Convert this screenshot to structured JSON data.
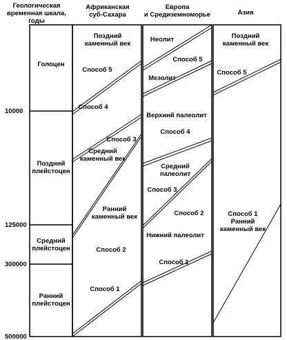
{
  "headers": {
    "timescale": [
      "Геологическая",
      "временная шкала,",
      "годы"
    ],
    "africa": [
      "Африканская",
      "суб-Сахара"
    ],
    "europe": [
      "Европа",
      "и Средиземноморье"
    ],
    "asia": [
      "Азия"
    ]
  },
  "epochs": [
    {
      "lines": [
        "Голоцен"
      ]
    },
    {
      "lines": [
        "Поздний",
        "плейстоцен"
      ]
    },
    {
      "lines": [
        "Средний",
        "плейстоцен"
      ]
    },
    {
      "lines": [
        "Ранний",
        "плейстоцен"
      ]
    }
  ],
  "years": [
    "10000",
    "125000",
    "300000",
    "500000"
  ],
  "africa": {
    "labels": [
      [
        "Поздний",
        "каменный век"
      ],
      [
        "Способ 5"
      ],
      [
        "Способ 4"
      ],
      [
        "Способ 3"
      ],
      [
        "Средний",
        "каменный век"
      ],
      [
        "Ранний",
        "каменный век"
      ],
      [
        "Способ 2"
      ],
      [
        "Способ 1"
      ]
    ]
  },
  "europe": {
    "labels": [
      [
        "Неолит"
      ],
      [
        "Способ 5"
      ],
      [
        "Мезолит"
      ],
      [
        "Верхний палеолит"
      ],
      [
        "Способ 4"
      ],
      [
        "Средний",
        "палеолит"
      ],
      [
        "Способ 3"
      ],
      [
        "Способ 2"
      ],
      [
        "Нижний палеолит"
      ],
      [
        "Способ 1"
      ]
    ]
  },
  "asia": {
    "labels": [
      [
        "Поздний",
        "каменный век"
      ],
      [
        "Способ 5"
      ],
      [
        "Способ 1",
        "Ранний",
        "каменный век"
      ]
    ]
  }
}
